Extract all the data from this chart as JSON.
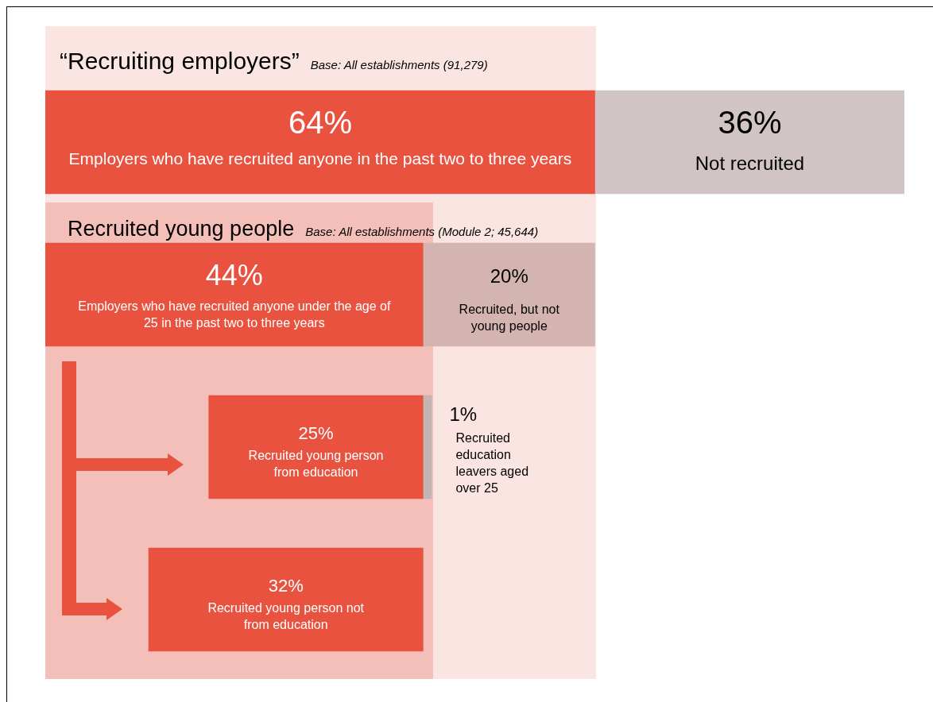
{
  "chart_data": {
    "type": "other",
    "title": "“Recruiting employers”",
    "subtitle": "Base: All establishments (91,279)",
    "categories": [
      "Employers who have recruited anyone in the past two to three years",
      "Employers who have recruited anyone under the age of 25 in the past two to three years",
      "Recruited young person from education",
      "Recruited young person not from education"
    ],
    "series": [
      {
        "color": "#e8523f",
        "values": [
          64,
          44,
          25,
          32
        ],
        "value_labels": [
          "64%",
          "44%",
          "25%",
          "32%"
        ]
      },
      {
        "color": "#d0c4c4",
        "colors": [
          "#d0c4c4",
          "#d4b4b1",
          "#c4b4b4",
          null
        ],
        "values": [
          36,
          20,
          1,
          null
        ],
        "value_labels": [
          "36%",
          "20%",
          "1%",
          null
        ]
      }
    ],
    "legend": false,
    "annotations": [
      "Recruited young people",
      "Base: All establishments (Module 2; 45,644)",
      "Not recruited",
      "Recruited, but not young people",
      "Recruited education leavers aged over 25"
    ]
  }
}
